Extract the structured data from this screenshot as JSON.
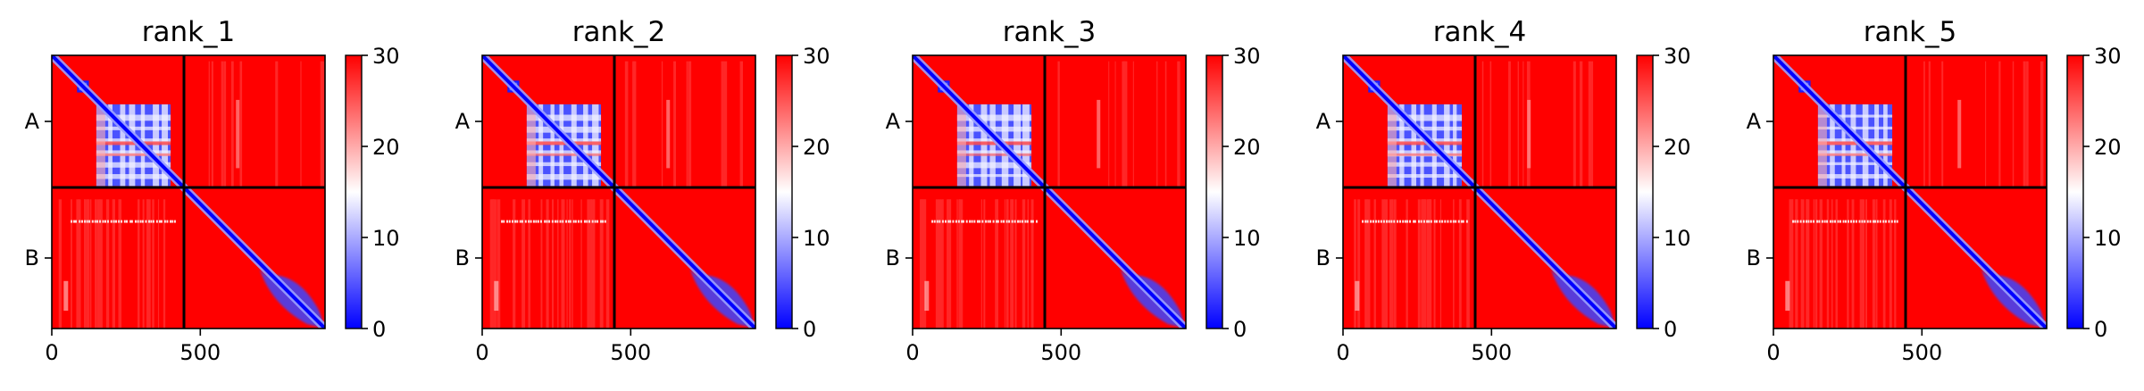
{
  "chart_data": [
    {
      "type": "heatmap",
      "title": "rank_1",
      "x_ticks": [
        0,
        500
      ],
      "y_tick_labels": [
        "A",
        "B"
      ],
      "chain_lengths": [
        445,
        475
      ],
      "xlim": [
        0,
        920
      ],
      "colorbar": {
        "ticks": [
          0,
          10,
          20,
          30
        ],
        "range": [
          0,
          30
        ],
        "colors": [
          "#0000ff",
          "#ffffff",
          "#ff0000"
        ]
      }
    },
    {
      "type": "heatmap",
      "title": "rank_2",
      "x_ticks": [
        0,
        500
      ],
      "y_tick_labels": [
        "A",
        "B"
      ],
      "chain_lengths": [
        445,
        475
      ],
      "xlim": [
        0,
        920
      ],
      "colorbar": {
        "ticks": [
          0,
          10,
          20,
          30
        ],
        "range": [
          0,
          30
        ],
        "colors": [
          "#0000ff",
          "#ffffff",
          "#ff0000"
        ]
      }
    },
    {
      "type": "heatmap",
      "title": "rank_3",
      "x_ticks": [
        0,
        500
      ],
      "y_tick_labels": [
        "A",
        "B"
      ],
      "chain_lengths": [
        445,
        475
      ],
      "xlim": [
        0,
        920
      ],
      "colorbar": {
        "ticks": [
          0,
          10,
          20,
          30
        ],
        "range": [
          0,
          30
        ],
        "colors": [
          "#0000ff",
          "#ffffff",
          "#ff0000"
        ]
      }
    },
    {
      "type": "heatmap",
      "title": "rank_4",
      "x_ticks": [
        0,
        500
      ],
      "y_tick_labels": [
        "A",
        "B"
      ],
      "chain_lengths": [
        445,
        475
      ],
      "xlim": [
        0,
        920
      ],
      "colorbar": {
        "ticks": [
          0,
          10,
          20,
          30
        ],
        "range": [
          0,
          30
        ],
        "colors": [
          "#0000ff",
          "#ffffff",
          "#ff0000"
        ]
      }
    },
    {
      "type": "heatmap",
      "title": "rank_5",
      "x_ticks": [
        0,
        500
      ],
      "y_tick_labels": [
        "A",
        "B"
      ],
      "chain_lengths": [
        445,
        475
      ],
      "xlim": [
        0,
        920
      ],
      "colorbar": {
        "ticks": [
          0,
          10,
          20,
          30
        ],
        "range": [
          0,
          30
        ],
        "colors": [
          "#0000ff",
          "#ffffff",
          "#ff0000"
        ]
      }
    }
  ]
}
